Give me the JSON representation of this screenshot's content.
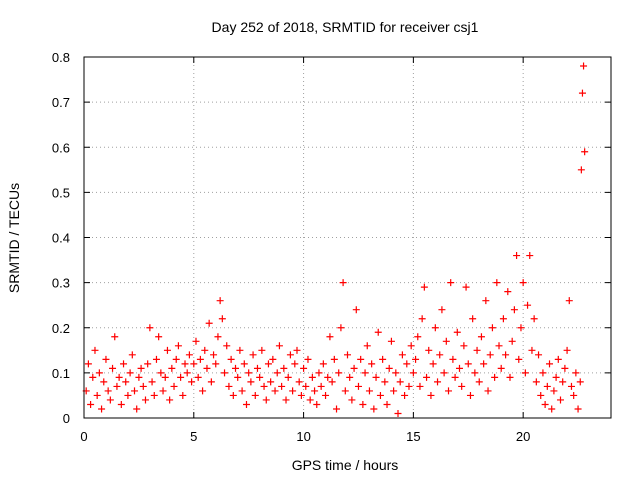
{
  "chart_data": {
    "type": "scatter",
    "title": "Day 252 of 2018, SRMTID for receiver csj1",
    "xlabel": "GPS time / hours",
    "ylabel": "SRMTID / TECUs",
    "xlim": [
      0,
      24
    ],
    "ylim": [
      0,
      0.8
    ],
    "xticks": [
      0,
      5,
      10,
      15,
      20
    ],
    "yticks": [
      0,
      0.1,
      0.2,
      0.3,
      0.4,
      0.5,
      0.6,
      0.7,
      0.8
    ],
    "xtick_labels": [
      "0",
      "5",
      "10",
      "15",
      "20"
    ],
    "ytick_labels": [
      "0",
      "0.1",
      "0.2",
      "0.3",
      "0.4",
      "0.5",
      "0.6",
      "0.7",
      "0.8"
    ],
    "grid": true,
    "marker": "+",
    "color": "#ff0000",
    "series": [
      {
        "name": "SRMTID",
        "points": [
          [
            0.1,
            0.06
          ],
          [
            0.2,
            0.12
          ],
          [
            0.3,
            0.03
          ],
          [
            0.4,
            0.09
          ],
          [
            0.5,
            0.15
          ],
          [
            0.6,
            0.05
          ],
          [
            0.7,
            0.1
          ],
          [
            0.8,
            0.02
          ],
          [
            0.9,
            0.08
          ],
          [
            1.0,
            0.13
          ],
          [
            1.1,
            0.06
          ],
          [
            1.2,
            0.04
          ],
          [
            1.3,
            0.11
          ],
          [
            1.4,
            0.18
          ],
          [
            1.5,
            0.07
          ],
          [
            1.6,
            0.09
          ],
          [
            1.7,
            0.03
          ],
          [
            1.8,
            0.12
          ],
          [
            1.9,
            0.08
          ],
          [
            2.0,
            0.05
          ],
          [
            2.1,
            0.1
          ],
          [
            2.2,
            0.14
          ],
          [
            2.3,
            0.06
          ],
          [
            2.4,
            0.02
          ],
          [
            2.5,
            0.09
          ],
          [
            2.6,
            0.11
          ],
          [
            2.7,
            0.07
          ],
          [
            2.8,
            0.04
          ],
          [
            2.9,
            0.12
          ],
          [
            3.0,
            0.2
          ],
          [
            3.1,
            0.08
          ],
          [
            3.2,
            0.05
          ],
          [
            3.3,
            0.13
          ],
          [
            3.4,
            0.18
          ],
          [
            3.5,
            0.1
          ],
          [
            3.6,
            0.06
          ],
          [
            3.7,
            0.09
          ],
          [
            3.8,
            0.15
          ],
          [
            3.9,
            0.04
          ],
          [
            4.0,
            0.11
          ],
          [
            4.1,
            0.07
          ],
          [
            4.2,
            0.13
          ],
          [
            4.3,
            0.16
          ],
          [
            4.4,
            0.09
          ],
          [
            4.5,
            0.05
          ],
          [
            4.6,
            0.12
          ],
          [
            4.7,
            0.1
          ],
          [
            4.8,
            0.14
          ],
          [
            4.9,
            0.08
          ],
          [
            5.0,
            0.12
          ],
          [
            5.1,
            0.17
          ],
          [
            5.2,
            0.09
          ],
          [
            5.3,
            0.13
          ],
          [
            5.4,
            0.06
          ],
          [
            5.5,
            0.15
          ],
          [
            5.6,
            0.11
          ],
          [
            5.7,
            0.21
          ],
          [
            5.8,
            0.08
          ],
          [
            5.9,
            0.14
          ],
          [
            6.0,
            0.12
          ],
          [
            6.1,
            0.18
          ],
          [
            6.2,
            0.26
          ],
          [
            6.3,
            0.22
          ],
          [
            6.4,
            0.1
          ],
          [
            6.5,
            0.16
          ],
          [
            6.6,
            0.07
          ],
          [
            6.7,
            0.13
          ],
          [
            6.8,
            0.05
          ],
          [
            6.9,
            0.11
          ],
          [
            7.0,
            0.09
          ],
          [
            7.1,
            0.15
          ],
          [
            7.2,
            0.06
          ],
          [
            7.3,
            0.12
          ],
          [
            7.4,
            0.03
          ],
          [
            7.5,
            0.1
          ],
          [
            7.6,
            0.08
          ],
          [
            7.7,
            0.14
          ],
          [
            7.8,
            0.05
          ],
          [
            7.9,
            0.11
          ],
          [
            8.0,
            0.09
          ],
          [
            8.1,
            0.15
          ],
          [
            8.2,
            0.07
          ],
          [
            8.3,
            0.04
          ],
          [
            8.4,
            0.12
          ],
          [
            8.5,
            0.08
          ],
          [
            8.6,
            0.13
          ],
          [
            8.7,
            0.06
          ],
          [
            8.8,
            0.1
          ],
          [
            8.9,
            0.16
          ],
          [
            9.0,
            0.07
          ],
          [
            9.1,
            0.11
          ],
          [
            9.2,
            0.04
          ],
          [
            9.3,
            0.09
          ],
          [
            9.4,
            0.14
          ],
          [
            9.5,
            0.06
          ],
          [
            9.6,
            0.12
          ],
          [
            9.7,
            0.15
          ],
          [
            9.8,
            0.08
          ],
          [
            9.9,
            0.05
          ],
          [
            10.0,
            0.11
          ],
          [
            10.1,
            0.07
          ],
          [
            10.2,
            0.13
          ],
          [
            10.3,
            0.04
          ],
          [
            10.4,
            0.09
          ],
          [
            10.5,
            0.06
          ],
          [
            10.6,
            0.03
          ],
          [
            10.7,
            0.1
          ],
          [
            10.8,
            0.07
          ],
          [
            10.9,
            0.12
          ],
          [
            11.0,
            0.05
          ],
          [
            11.1,
            0.09
          ],
          [
            11.2,
            0.18
          ],
          [
            11.3,
            0.08
          ],
          [
            11.4,
            0.13
          ],
          [
            11.5,
            0.02
          ],
          [
            11.6,
            0.1
          ],
          [
            11.7,
            0.2
          ],
          [
            11.8,
            0.3
          ],
          [
            11.9,
            0.06
          ],
          [
            12.0,
            0.14
          ],
          [
            12.1,
            0.09
          ],
          [
            12.2,
            0.04
          ],
          [
            12.3,
            0.11
          ],
          [
            12.4,
            0.24
          ],
          [
            12.5,
            0.07
          ],
          [
            12.6,
            0.13
          ],
          [
            12.7,
            0.03
          ],
          [
            12.8,
            0.1
          ],
          [
            12.9,
            0.16
          ],
          [
            13.0,
            0.06
          ],
          [
            13.1,
            0.12
          ],
          [
            13.2,
            0.02
          ],
          [
            13.3,
            0.09
          ],
          [
            13.4,
            0.19
          ],
          [
            13.5,
            0.05
          ],
          [
            13.6,
            0.13
          ],
          [
            13.7,
            0.08
          ],
          [
            13.8,
            0.03
          ],
          [
            13.9,
            0.11
          ],
          [
            14.0,
            0.17
          ],
          [
            14.1,
            0.06
          ],
          [
            14.2,
            0.1
          ],
          [
            14.3,
            0.01
          ],
          [
            14.4,
            0.08
          ],
          [
            14.5,
            0.14
          ],
          [
            14.6,
            0.05
          ],
          [
            14.7,
            0.12
          ],
          [
            14.8,
            0.07
          ],
          [
            14.9,
            0.16
          ],
          [
            15.0,
            0.1
          ],
          [
            15.1,
            0.13
          ],
          [
            15.2,
            0.18
          ],
          [
            15.3,
            0.07
          ],
          [
            15.4,
            0.22
          ],
          [
            15.5,
            0.29
          ],
          [
            15.6,
            0.09
          ],
          [
            15.7,
            0.15
          ],
          [
            15.8,
            0.05
          ],
          [
            15.9,
            0.12
          ],
          [
            16.0,
            0.2
          ],
          [
            16.1,
            0.08
          ],
          [
            16.2,
            0.14
          ],
          [
            16.3,
            0.24
          ],
          [
            16.4,
            0.1
          ],
          [
            16.5,
            0.17
          ],
          [
            16.6,
            0.06
          ],
          [
            16.7,
            0.3
          ],
          [
            16.8,
            0.13
          ],
          [
            16.9,
            0.09
          ],
          [
            17.0,
            0.19
          ],
          [
            17.1,
            0.11
          ],
          [
            17.2,
            0.07
          ],
          [
            17.3,
            0.16
          ],
          [
            17.4,
            0.29
          ],
          [
            17.5,
            0.12
          ],
          [
            17.6,
            0.05
          ],
          [
            17.7,
            0.22
          ],
          [
            17.8,
            0.1
          ],
          [
            17.9,
            0.15
          ],
          [
            18.0,
            0.08
          ],
          [
            18.1,
            0.18
          ],
          [
            18.2,
            0.12
          ],
          [
            18.3,
            0.26
          ],
          [
            18.4,
            0.06
          ],
          [
            18.5,
            0.14
          ],
          [
            18.6,
            0.2
          ],
          [
            18.7,
            0.09
          ],
          [
            18.8,
            0.3
          ],
          [
            18.9,
            0.16
          ],
          [
            19.0,
            0.11
          ],
          [
            19.1,
            0.22
          ],
          [
            19.2,
            0.14
          ],
          [
            19.3,
            0.28
          ],
          [
            19.4,
            0.09
          ],
          [
            19.5,
            0.17
          ],
          [
            19.6,
            0.24
          ],
          [
            19.7,
            0.36
          ],
          [
            19.8,
            0.13
          ],
          [
            19.9,
            0.2
          ],
          [
            20.0,
            0.3
          ],
          [
            20.1,
            0.1
          ],
          [
            20.2,
            0.25
          ],
          [
            20.3,
            0.36
          ],
          [
            20.4,
            0.15
          ],
          [
            20.5,
            0.22
          ],
          [
            20.6,
            0.08
          ],
          [
            20.7,
            0.14
          ],
          [
            20.8,
            0.05
          ],
          [
            20.9,
            0.1
          ],
          [
            21.0,
            0.03
          ],
          [
            21.1,
            0.07
          ],
          [
            21.2,
            0.12
          ],
          [
            21.3,
            0.02
          ],
          [
            21.4,
            0.06
          ],
          [
            21.5,
            0.09
          ],
          [
            21.6,
            0.13
          ],
          [
            21.7,
            0.04
          ],
          [
            21.8,
            0.08
          ],
          [
            21.9,
            0.11
          ],
          [
            22.0,
            0.15
          ],
          [
            22.1,
            0.26
          ],
          [
            22.2,
            0.07
          ],
          [
            22.3,
            0.05
          ],
          [
            22.4,
            0.1
          ],
          [
            22.5,
            0.02
          ],
          [
            22.6,
            0.08
          ],
          [
            22.65,
            0.55
          ],
          [
            22.7,
            0.72
          ],
          [
            22.75,
            0.78
          ],
          [
            22.8,
            0.59
          ]
        ]
      }
    ]
  }
}
